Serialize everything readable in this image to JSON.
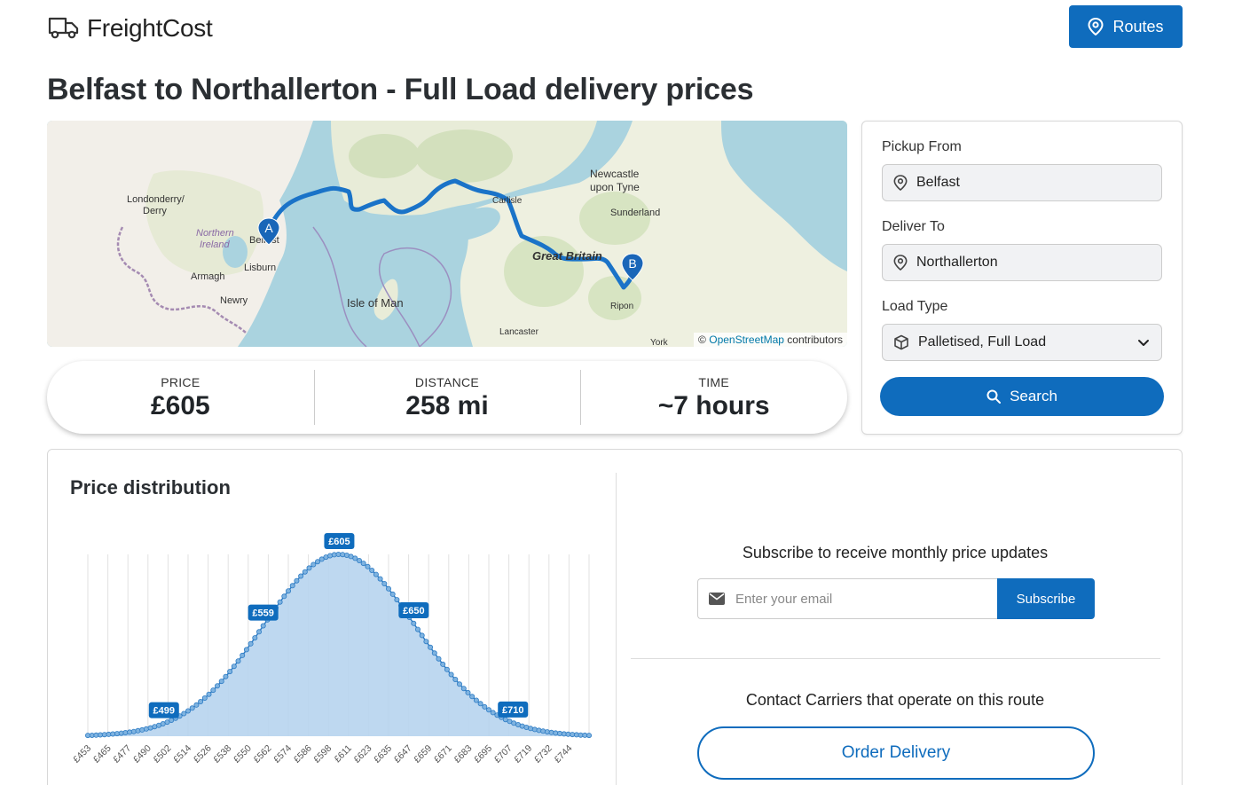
{
  "header": {
    "logo_text_1": "Freight",
    "logo_text_2": "Cost",
    "logo_icon": "truck-icon",
    "routes_label": "Routes",
    "routes_icon": "map-pin-icon"
  },
  "page": {
    "title": "Belfast to Northallerton - Full Load delivery prices"
  },
  "map": {
    "labels": [
      "Londonderry/",
      "Derry",
      "Northern",
      "Ireland",
      "Belfast",
      "Lisburn",
      "Armagh",
      "Newry",
      "Isle of Man",
      "Carlisle",
      "Newcastle",
      "upon Tyne",
      "Sunderland",
      "Great Britain",
      "Ripon",
      "Lancaster",
      "York"
    ],
    "marker_a": "A",
    "marker_b": "B",
    "attribution_prefix": "©",
    "attribution_link": "OpenStreetMap",
    "attribution_suffix": "contributors",
    "route_color": "#1a73c8"
  },
  "stats": {
    "price_label": "PRICE",
    "price_value": "£605",
    "distance_label": "DISTANCE",
    "distance_value": "258 mi",
    "time_label": "TIME",
    "time_value": "~7 hours"
  },
  "form": {
    "pickup_label": "Pickup From",
    "pickup_value": "Belfast",
    "deliver_label": "Deliver To",
    "deliver_value": "Northallerton",
    "load_label": "Load Type",
    "load_value": "Palletised, Full Load",
    "search_label": "Search"
  },
  "distribution": {
    "title": "Price distribution"
  },
  "subscribe": {
    "text": "Subscribe to receive monthly price updates",
    "email_placeholder": "Enter your email",
    "button_label": "Subscribe"
  },
  "contact": {
    "text": "Contact Carriers that operate on this route",
    "order_label": "Order Delivery"
  },
  "chart_data": {
    "type": "area",
    "title": "Price distribution",
    "x_ticks": [
      "£453",
      "£465",
      "£477",
      "£490",
      "£502",
      "£514",
      "£526",
      "£538",
      "£550",
      "£562",
      "£574",
      "£586",
      "£598",
      "£611",
      "£623",
      "£635",
      "£647",
      "£659",
      "£671",
      "£683",
      "£695",
      "£707",
      "£719",
      "£732",
      "£744"
    ],
    "x_min": 453,
    "x_max": 756,
    "mean": 605,
    "std": 46,
    "annotations": [
      {
        "x": 499,
        "label": "£499"
      },
      {
        "x": 559,
        "label": "£559"
      },
      {
        "x": 605,
        "label": "£605"
      },
      {
        "x": 650,
        "label": "£650"
      },
      {
        "x": 710,
        "label": "£710"
      }
    ],
    "fill_color": "#b7d4ee",
    "line_color": "#2e7cc4",
    "label_bg": "#0f6cbd",
    "grid": true
  }
}
